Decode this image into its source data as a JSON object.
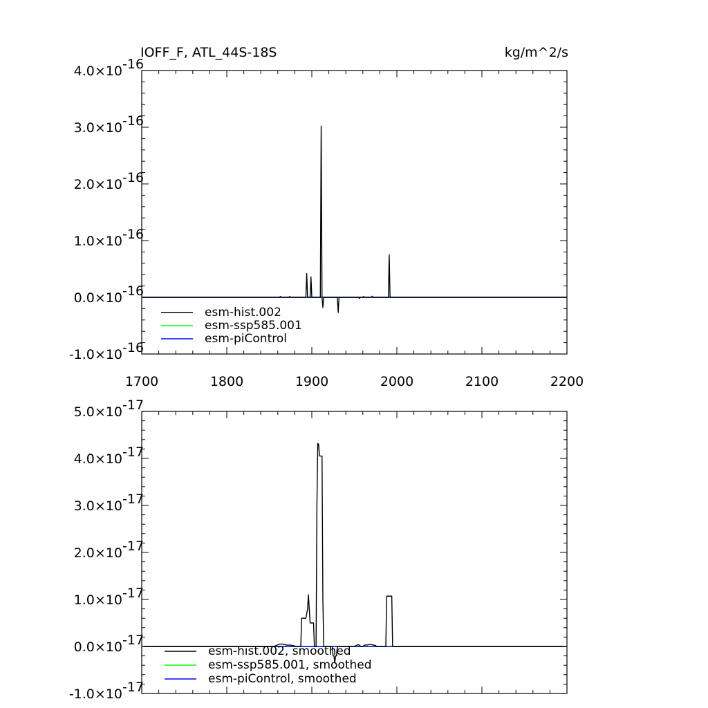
{
  "chart_data": [
    {
      "type": "line",
      "title": "IOFF_F, ATL_44S-18S",
      "units": "kg/m^2/s",
      "xlim": [
        1700,
        2200
      ],
      "ylim": [
        -1e-16,
        4e-16
      ],
      "x_ticks": [
        1700,
        1800,
        1900,
        2000,
        2100,
        2200
      ],
      "x_tick_labels": [
        "1700",
        "1800",
        "1900",
        "2000",
        "2100",
        "2200"
      ],
      "y_ticks": [
        -1e-16,
        0,
        1e-16,
        2e-16,
        3e-16,
        4e-16
      ],
      "y_tick_labels": [
        {
          "mant": "-1.0",
          "exp": "-16"
        },
        {
          "mant": "0.0",
          "exp": "-16"
        },
        {
          "mant": "1.0",
          "exp": "-16"
        },
        {
          "mant": "2.0",
          "exp": "-16"
        },
        {
          "mant": "3.0",
          "exp": "-16"
        },
        {
          "mant": "4.0",
          "exp": "-16"
        }
      ],
      "legend_position": "bottom-left",
      "series": [
        {
          "name": "esm-hist.002",
          "color": "#000000",
          "x": [
            1700,
            1850,
            1862,
            1863,
            1864,
            1873,
            1874,
            1875,
            1893,
            1894,
            1895,
            1898,
            1899,
            1900,
            1910,
            1911,
            1912,
            1913,
            1914,
            1930,
            1931,
            1932,
            1955,
            1956,
            1957,
            1960,
            1961,
            1962,
            1970,
            1971,
            1972,
            1990,
            1991,
            1992,
            2200
          ],
          "y": [
            0,
            0,
            0,
            1.5e-18,
            0,
            0,
            1.5e-18,
            0,
            0,
            4.2e-17,
            0,
            0,
            3.6e-17,
            0,
            0,
            3.02e-16,
            0,
            -1.8e-17,
            0,
            0,
            -2.7e-17,
            0,
            0,
            -2e-18,
            0,
            0,
            1.5e-18,
            0,
            0,
            2e-18,
            0,
            0,
            7.5e-17,
            0,
            0
          ]
        },
        {
          "name": "esm-ssp585.001",
          "color": "#00ff00",
          "x": [
            1700,
            2200
          ],
          "y": [
            0,
            0
          ]
        },
        {
          "name": "esm-piControl",
          "color": "#0000ff",
          "x": [
            1700,
            2200
          ],
          "y": [
            0,
            0
          ]
        }
      ]
    },
    {
      "type": "line",
      "xlim": [
        1700,
        2200
      ],
      "ylim": [
        -1e-17,
        5e-17
      ],
      "x_ticks": [
        1700,
        1800,
        1900,
        2000,
        2100,
        2200
      ],
      "y_ticks": [
        -1e-17,
        0,
        1e-17,
        2e-17,
        3e-17,
        4e-17,
        5e-17
      ],
      "y_tick_labels": [
        {
          "mant": "-1.0",
          "exp": "-17"
        },
        {
          "mant": "0.0",
          "exp": "-17"
        },
        {
          "mant": "1.0",
          "exp": "-17"
        },
        {
          "mant": "2.0",
          "exp": "-17"
        },
        {
          "mant": "3.0",
          "exp": "-17"
        },
        {
          "mant": "4.0",
          "exp": "-17"
        },
        {
          "mant": "5.0",
          "exp": "-17"
        }
      ],
      "legend_position": "bottom-left",
      "series": [
        {
          "name": "esm-hist.002, smoothed",
          "color": "#000000",
          "x": [
            1700,
            1855,
            1858,
            1862,
            1866,
            1870,
            1874,
            1878,
            1882,
            1887,
            1888,
            1891,
            1893,
            1895,
            1896,
            1897,
            1898,
            1900,
            1902,
            1903,
            1905,
            1906,
            1907,
            1908,
            1909,
            1910,
            1911,
            1912,
            1913,
            1914,
            1916,
            1918,
            1920,
            1924,
            1925,
            1926,
            1927,
            1928,
            1929,
            1930,
            1932,
            1934,
            1936,
            1945,
            1950,
            1952,
            1955,
            1956,
            1958,
            1960,
            1962,
            1965,
            1967,
            1970,
            1975,
            1976,
            1979,
            1982,
            1987,
            1988,
            1990,
            1993,
            1994,
            1995,
            2200
          ],
          "y": [
            0,
            0,
            2e-19,
            5e-19,
            5e-19,
            3e-19,
            3e-19,
            2e-19,
            0,
            0,
            6e-18,
            6e-18,
            6e-18,
            8e-18,
            1.1e-17,
            8e-18,
            5e-18,
            5e-18,
            5e-18,
            0,
            0,
            3e-17,
            4.32e-17,
            4.3e-17,
            4.05e-17,
            4.05e-17,
            4.05e-17,
            4.05e-17,
            1e-17,
            0,
            0,
            0,
            0,
            0,
            -2e-18,
            -2e-18,
            -3.5e-18,
            -2e-18,
            -2e-18,
            0,
            0,
            0,
            0,
            0,
            0,
            2e-19,
            4e-19,
            2e-19,
            0,
            0,
            3e-19,
            3e-19,
            4e-19,
            4e-19,
            2e-19,
            0,
            0,
            0,
            0,
            1.07e-17,
            1.07e-17,
            1.07e-17,
            1.07e-17,
            0,
            0
          ]
        },
        {
          "name": "esm-ssp585.001, smoothed",
          "color": "#00ff00",
          "x": [
            1703,
            2197
          ],
          "y": [
            0,
            0
          ]
        },
        {
          "name": "esm-piControl, smoothed",
          "color": "#0000ff",
          "x": [
            1703,
            2197
          ],
          "y": [
            0,
            0
          ]
        }
      ]
    }
  ]
}
